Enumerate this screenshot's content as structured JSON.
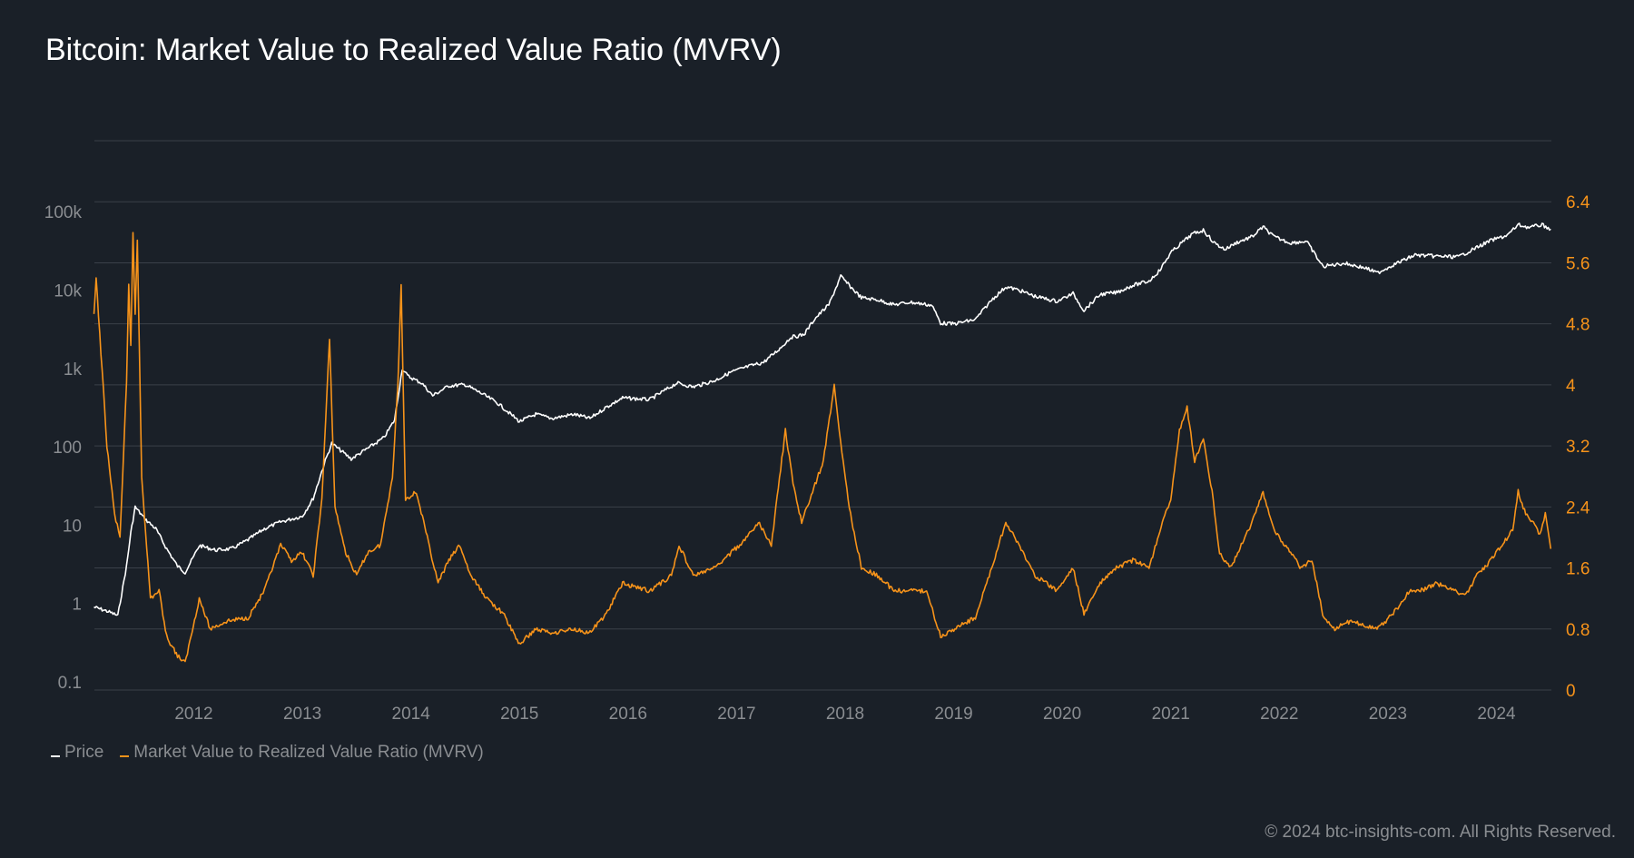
{
  "chart_data": {
    "type": "line",
    "title": "Bitcoin: Market Value to Realized Value Ratio (MVRV)",
    "xlabel": "",
    "x_ticks": [
      "2012",
      "2013",
      "2014",
      "2015",
      "2016",
      "2017",
      "2018",
      "2019",
      "2020",
      "2021",
      "2022",
      "2023",
      "2024"
    ],
    "xlim": [
      2011.08,
      2024.5
    ],
    "left_axis": {
      "scale": "log",
      "ticks": [
        "0.1",
        "1",
        "10",
        "100",
        "1k",
        "10k",
        "100k"
      ],
      "tick_values": [
        0.1,
        1,
        10,
        100,
        1000,
        10000,
        100000
      ]
    },
    "right_axis": {
      "scale": "linear",
      "ticks": [
        "0",
        "0.8",
        "1.6",
        "2.4",
        "3.2",
        "4",
        "4.8",
        "5.6",
        "6.4"
      ],
      "ylim": [
        0,
        7.2
      ]
    },
    "grid": true,
    "legend_position": "bottom-left",
    "series": [
      {
        "name": "Price",
        "axis": "left",
        "color": "#ffffff",
        "points": [
          [
            2011.08,
            0.9
          ],
          [
            2011.2,
            0.8
          ],
          [
            2011.3,
            0.7
          ],
          [
            2011.38,
            3
          ],
          [
            2011.42,
            8
          ],
          [
            2011.46,
            17
          ],
          [
            2011.55,
            12
          ],
          [
            2011.65,
            9
          ],
          [
            2011.75,
            5
          ],
          [
            2011.85,
            3
          ],
          [
            2011.92,
            2.5
          ],
          [
            2012.0,
            4
          ],
          [
            2012.05,
            5.5
          ],
          [
            2012.2,
            4.8
          ],
          [
            2012.35,
            5
          ],
          [
            2012.5,
            6.5
          ],
          [
            2012.65,
            9
          ],
          [
            2012.8,
            11
          ],
          [
            2013.0,
            13
          ],
          [
            2013.1,
            22
          ],
          [
            2013.2,
            60
          ],
          [
            2013.27,
            110
          ],
          [
            2013.33,
            95
          ],
          [
            2013.45,
            70
          ],
          [
            2013.6,
            95
          ],
          [
            2013.75,
            130
          ],
          [
            2013.85,
            220
          ],
          [
            2013.92,
            1000
          ],
          [
            2013.97,
            800
          ],
          [
            2014.1,
            650
          ],
          [
            2014.2,
            450
          ],
          [
            2014.35,
            600
          ],
          [
            2014.5,
            620
          ],
          [
            2014.65,
            480
          ],
          [
            2014.8,
            360
          ],
          [
            2015.0,
            210
          ],
          [
            2015.15,
            260
          ],
          [
            2015.3,
            230
          ],
          [
            2015.5,
            260
          ],
          [
            2015.65,
            230
          ],
          [
            2015.8,
            320
          ],
          [
            2015.95,
            420
          ],
          [
            2016.2,
            400
          ],
          [
            2016.45,
            650
          ],
          [
            2016.6,
            580
          ],
          [
            2016.8,
            700
          ],
          [
            2016.95,
            900
          ],
          [
            2017.1,
            1050
          ],
          [
            2017.25,
            1200
          ],
          [
            2017.4,
            1800
          ],
          [
            2017.5,
            2500
          ],
          [
            2017.62,
            2700
          ],
          [
            2017.72,
            4300
          ],
          [
            2017.85,
            6500
          ],
          [
            2017.96,
            15000
          ],
          [
            2018.05,
            11000
          ],
          [
            2018.15,
            8000
          ],
          [
            2018.3,
            7500
          ],
          [
            2018.45,
            6500
          ],
          [
            2018.6,
            7000
          ],
          [
            2018.8,
            6400
          ],
          [
            2018.88,
            3800
          ],
          [
            2019.0,
            3700
          ],
          [
            2019.2,
            4200
          ],
          [
            2019.35,
            7500
          ],
          [
            2019.48,
            11000
          ],
          [
            2019.6,
            10000
          ],
          [
            2019.75,
            8300
          ],
          [
            2019.95,
            7200
          ],
          [
            2020.1,
            9000
          ],
          [
            2020.2,
            5500
          ],
          [
            2020.35,
            8800
          ],
          [
            2020.5,
            9300
          ],
          [
            2020.65,
            11500
          ],
          [
            2020.8,
            13000
          ],
          [
            2020.9,
            18000
          ],
          [
            2021.0,
            30000
          ],
          [
            2021.1,
            40000
          ],
          [
            2021.2,
            52000
          ],
          [
            2021.3,
            58000
          ],
          [
            2021.4,
            40000
          ],
          [
            2021.5,
            33000
          ],
          [
            2021.6,
            40000
          ],
          [
            2021.75,
            48000
          ],
          [
            2021.85,
            64000
          ],
          [
            2021.95,
            48000
          ],
          [
            2022.1,
            40000
          ],
          [
            2022.25,
            42000
          ],
          [
            2022.4,
            20000
          ],
          [
            2022.6,
            22000
          ],
          [
            2022.8,
            19000
          ],
          [
            2022.9,
            16500
          ],
          [
            2023.05,
            21000
          ],
          [
            2023.25,
            28000
          ],
          [
            2023.45,
            27000
          ],
          [
            2023.65,
            26500
          ],
          [
            2023.8,
            34000
          ],
          [
            2023.95,
            43000
          ],
          [
            2024.1,
            50000
          ],
          [
            2024.2,
            68000
          ],
          [
            2024.3,
            63000
          ],
          [
            2024.42,
            68000
          ],
          [
            2024.5,
            60000
          ]
        ]
      },
      {
        "name": "Market Value to Realized Value Ratio (MVRV)",
        "axis": "right",
        "color": "#f7931a",
        "points": [
          [
            2011.08,
            4.9
          ],
          [
            2011.1,
            5.4
          ],
          [
            2011.2,
            3.2
          ],
          [
            2011.27,
            2.3
          ],
          [
            2011.32,
            2.0
          ],
          [
            2011.38,
            4.0
          ],
          [
            2011.4,
            5.3
          ],
          [
            2011.42,
            4.5
          ],
          [
            2011.44,
            6.0
          ],
          [
            2011.46,
            4.9
          ],
          [
            2011.48,
            5.9
          ],
          [
            2011.52,
            2.8
          ],
          [
            2011.6,
            1.2
          ],
          [
            2011.68,
            1.3
          ],
          [
            2011.75,
            0.7
          ],
          [
            2011.85,
            0.45
          ],
          [
            2011.92,
            0.35
          ],
          [
            2012.05,
            1.2
          ],
          [
            2012.15,
            0.8
          ],
          [
            2012.3,
            0.9
          ],
          [
            2012.5,
            0.95
          ],
          [
            2012.65,
            1.3
          ],
          [
            2012.8,
            1.9
          ],
          [
            2012.9,
            1.7
          ],
          [
            2013.0,
            1.8
          ],
          [
            2013.1,
            1.5
          ],
          [
            2013.18,
            2.5
          ],
          [
            2013.25,
            4.6
          ],
          [
            2013.3,
            2.4
          ],
          [
            2013.4,
            1.8
          ],
          [
            2013.5,
            1.5
          ],
          [
            2013.6,
            1.8
          ],
          [
            2013.72,
            1.9
          ],
          [
            2013.83,
            2.8
          ],
          [
            2013.88,
            4.0
          ],
          [
            2013.91,
            5.3
          ],
          [
            2013.95,
            2.5
          ],
          [
            2014.05,
            2.6
          ],
          [
            2014.15,
            2.0
          ],
          [
            2014.25,
            1.4
          ],
          [
            2014.35,
            1.7
          ],
          [
            2014.45,
            1.9
          ],
          [
            2014.55,
            1.5
          ],
          [
            2014.7,
            1.2
          ],
          [
            2014.85,
            1.0
          ],
          [
            2015.0,
            0.6
          ],
          [
            2015.15,
            0.8
          ],
          [
            2015.3,
            0.75
          ],
          [
            2015.5,
            0.8
          ],
          [
            2015.65,
            0.75
          ],
          [
            2015.8,
            1.0
          ],
          [
            2015.95,
            1.4
          ],
          [
            2016.2,
            1.3
          ],
          [
            2016.4,
            1.5
          ],
          [
            2016.47,
            1.9
          ],
          [
            2016.6,
            1.5
          ],
          [
            2016.8,
            1.6
          ],
          [
            2016.95,
            1.8
          ],
          [
            2017.1,
            2.0
          ],
          [
            2017.2,
            2.2
          ],
          [
            2017.32,
            1.9
          ],
          [
            2017.45,
            3.4
          ],
          [
            2017.52,
            2.7
          ],
          [
            2017.6,
            2.2
          ],
          [
            2017.7,
            2.6
          ],
          [
            2017.8,
            3.0
          ],
          [
            2017.9,
            4.0
          ],
          [
            2017.97,
            3.1
          ],
          [
            2018.05,
            2.3
          ],
          [
            2018.15,
            1.6
          ],
          [
            2018.3,
            1.5
          ],
          [
            2018.45,
            1.3
          ],
          [
            2018.6,
            1.3
          ],
          [
            2018.75,
            1.3
          ],
          [
            2018.88,
            0.7
          ],
          [
            2019.0,
            0.8
          ],
          [
            2019.2,
            0.95
          ],
          [
            2019.35,
            1.6
          ],
          [
            2019.48,
            2.2
          ],
          [
            2019.6,
            1.9
          ],
          [
            2019.75,
            1.5
          ],
          [
            2019.95,
            1.3
          ],
          [
            2020.1,
            1.6
          ],
          [
            2020.2,
            1.0
          ],
          [
            2020.35,
            1.4
          ],
          [
            2020.5,
            1.6
          ],
          [
            2020.65,
            1.7
          ],
          [
            2020.8,
            1.6
          ],
          [
            2020.9,
            2.1
          ],
          [
            2021.0,
            2.5
          ],
          [
            2021.08,
            3.4
          ],
          [
            2021.15,
            3.7
          ],
          [
            2021.22,
            3.0
          ],
          [
            2021.3,
            3.3
          ],
          [
            2021.38,
            2.6
          ],
          [
            2021.45,
            1.8
          ],
          [
            2021.55,
            1.6
          ],
          [
            2021.65,
            1.9
          ],
          [
            2021.75,
            2.2
          ],
          [
            2021.85,
            2.6
          ],
          [
            2021.95,
            2.1
          ],
          [
            2022.05,
            1.9
          ],
          [
            2022.2,
            1.6
          ],
          [
            2022.3,
            1.7
          ],
          [
            2022.4,
            1.0
          ],
          [
            2022.5,
            0.8
          ],
          [
            2022.65,
            0.9
          ],
          [
            2022.8,
            0.85
          ],
          [
            2022.9,
            0.8
          ],
          [
            2023.05,
            1.0
          ],
          [
            2023.2,
            1.3
          ],
          [
            2023.3,
            1.3
          ],
          [
            2023.45,
            1.4
          ],
          [
            2023.6,
            1.3
          ],
          [
            2023.72,
            1.25
          ],
          [
            2023.82,
            1.5
          ],
          [
            2023.95,
            1.7
          ],
          [
            2024.05,
            1.9
          ],
          [
            2024.15,
            2.1
          ],
          [
            2024.2,
            2.6
          ],
          [
            2024.27,
            2.3
          ],
          [
            2024.33,
            2.2
          ],
          [
            2024.4,
            2.05
          ],
          [
            2024.45,
            2.3
          ],
          [
            2024.5,
            1.85
          ]
        ]
      }
    ]
  },
  "legend": {
    "items": [
      {
        "label": "Price",
        "color": "#ffffff"
      },
      {
        "label": "Market Value to Realized Value Ratio (MVRV)",
        "color": "#f7931a"
      }
    ]
  },
  "footer": "© 2024 btc-insights-com. All Rights Reserved."
}
